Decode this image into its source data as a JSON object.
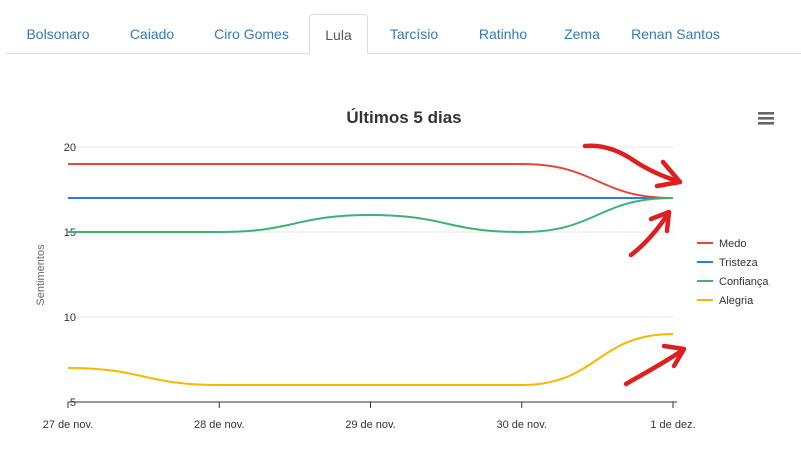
{
  "tabs": [
    {
      "label": "Bolsonaro",
      "active": false
    },
    {
      "label": "Caiado",
      "active": false
    },
    {
      "label": "Ciro Gomes",
      "active": false
    },
    {
      "label": "Lula",
      "active": true
    },
    {
      "label": "Tarcísio",
      "active": false
    },
    {
      "label": "Ratinho",
      "active": false
    },
    {
      "label": "Zema",
      "active": false
    },
    {
      "label": "Renan Santos",
      "active": false
    }
  ],
  "menu_icon": "hamburger-menu-icon",
  "annotations": {
    "icon": "red-hand-drawn-arrow-icon",
    "color": "#dd1f1f",
    "count": 3
  },
  "chart_data": {
    "type": "line",
    "title": "Últimos 5 dias",
    "xlabel": "",
    "ylabel": "Sentimentos",
    "categories": [
      "27 de nov.",
      "28 de nov.",
      "29 de nov.",
      "30 de nov.",
      "1 de dez."
    ],
    "y_ticks": [
      5,
      10,
      15,
      20
    ],
    "ylim": [
      5,
      20
    ],
    "grid": true,
    "legend_position": "right",
    "series": [
      {
        "name": "Medo",
        "color": "#e8453c",
        "values": [
          19,
          19,
          19,
          19,
          17
        ]
      },
      {
        "name": "Tristeza",
        "color": "#2c7be5",
        "values": [
          17,
          17,
          17,
          17,
          17
        ]
      },
      {
        "name": "Confiança",
        "color": "#3cb371",
        "values": [
          15,
          15,
          16,
          15,
          17
        ]
      },
      {
        "name": "Alegria",
        "color": "#f5b800",
        "values": [
          7,
          6,
          6,
          6,
          9
        ]
      }
    ]
  }
}
